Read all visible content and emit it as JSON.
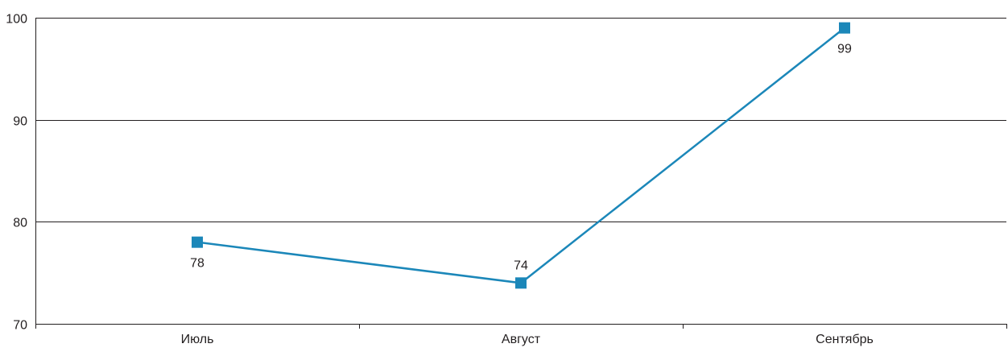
{
  "chart_data": {
    "type": "line",
    "categories": [
      "Июль",
      "Август",
      "Сентябрь"
    ],
    "series": [
      {
        "values": [
          78,
          74,
          99
        ]
      }
    ],
    "data_labels": [
      "78",
      "74",
      "99"
    ],
    "data_label_positions": [
      "below",
      "above",
      "below"
    ],
    "ylim": [
      70,
      100
    ],
    "yticks": [
      70,
      80,
      90,
      100
    ],
    "ytick_labels": [
      "70",
      "80",
      "90",
      "100"
    ],
    "title": "",
    "xlabel": "",
    "ylabel": "",
    "grid": true,
    "legend": "none",
    "line_color": "#1b87b9",
    "marker_color": "#1b87b9",
    "grid_color": "#231f20",
    "marker": "square"
  }
}
